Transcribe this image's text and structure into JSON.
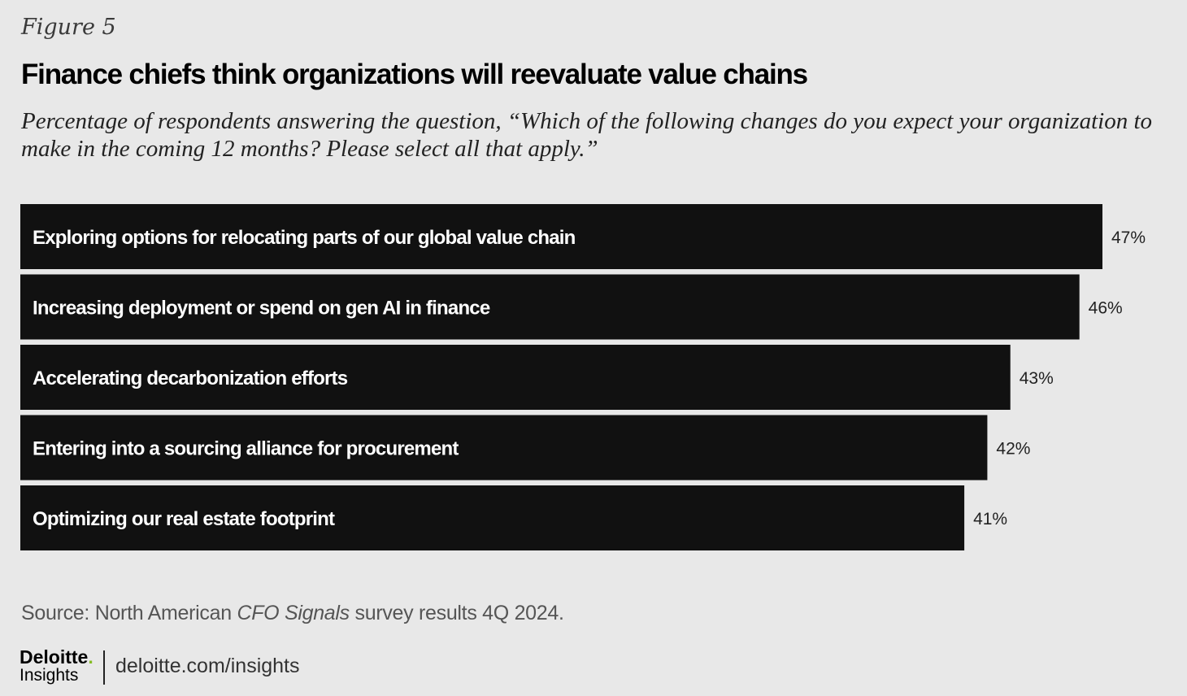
{
  "figure_label": "Figure 5",
  "chart_data": {
    "type": "bar",
    "orientation": "horizontal",
    "title": "Finance chiefs think organizations will reevaluate value chains",
    "subtitle": "Percentage of respondents answering the question, “Which of the following changes do you expect your organization to make in the coming 12 months? Please select all that apply.”",
    "categories": [
      "Exploring options for relocating parts of our global value chain",
      "Increasing deployment or spend on gen AI in finance",
      "Accelerating decarbonization efforts",
      "Entering into a sourcing alliance for procurement",
      "Optimizing our real estate footprint"
    ],
    "values": [
      47,
      46,
      43,
      42,
      41
    ],
    "value_labels": [
      "47%",
      "46%",
      "43%",
      "42%",
      "41%"
    ],
    "unit": "%",
    "bar_color": "#111111",
    "label_color": "#ffffff",
    "grid": false,
    "legend": "none"
  },
  "footer": {
    "source_prefix": "Source: North American ",
    "source_emphasis": "CFO Signals",
    "source_suffix": " survey results 4Q 2024.",
    "logo_main": "Deloitte",
    "logo_dot": ".",
    "logo_sub": "Insights",
    "site": "deloitte.com/insights"
  },
  "colors": {
    "background": "#e8e8e8",
    "accent_green": "#86bc25"
  }
}
